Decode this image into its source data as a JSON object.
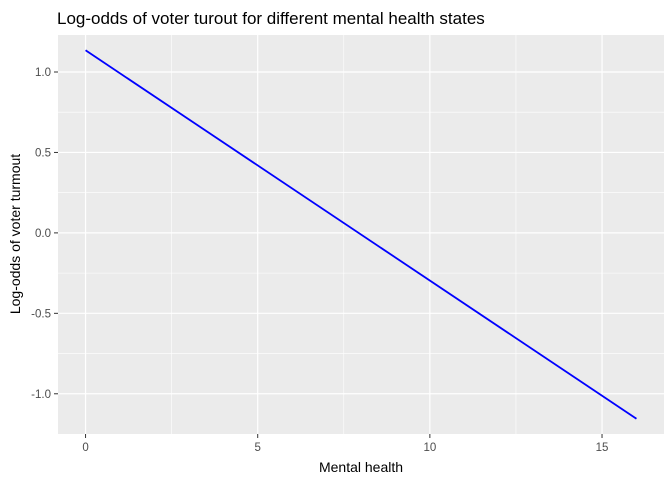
{
  "chart_data": {
    "type": "line",
    "title": "Log-odds of voter turout for different mental health states",
    "xlabel": "Mental health",
    "ylabel": "Log-odds of voter turmout",
    "xlim": [
      -0.8,
      16.8
    ],
    "ylim": [
      -1.25,
      1.23
    ],
    "x_ticks": [
      0,
      5,
      10,
      15
    ],
    "x_tick_labels": [
      "0",
      "5",
      "10",
      "15"
    ],
    "y_ticks": [
      -1.0,
      -0.5,
      0.0,
      0.5,
      1.0
    ],
    "y_tick_labels": [
      "-1.0",
      "-0.5",
      "0.0",
      "0.5",
      "1.0"
    ],
    "grid": true,
    "panel_color": "#ebebeb",
    "grid_color": "#ffffff",
    "series": [
      {
        "color": "#0000ff",
        "x": [
          0,
          16
        ],
        "y": [
          1.135,
          -1.155
        ]
      }
    ]
  }
}
